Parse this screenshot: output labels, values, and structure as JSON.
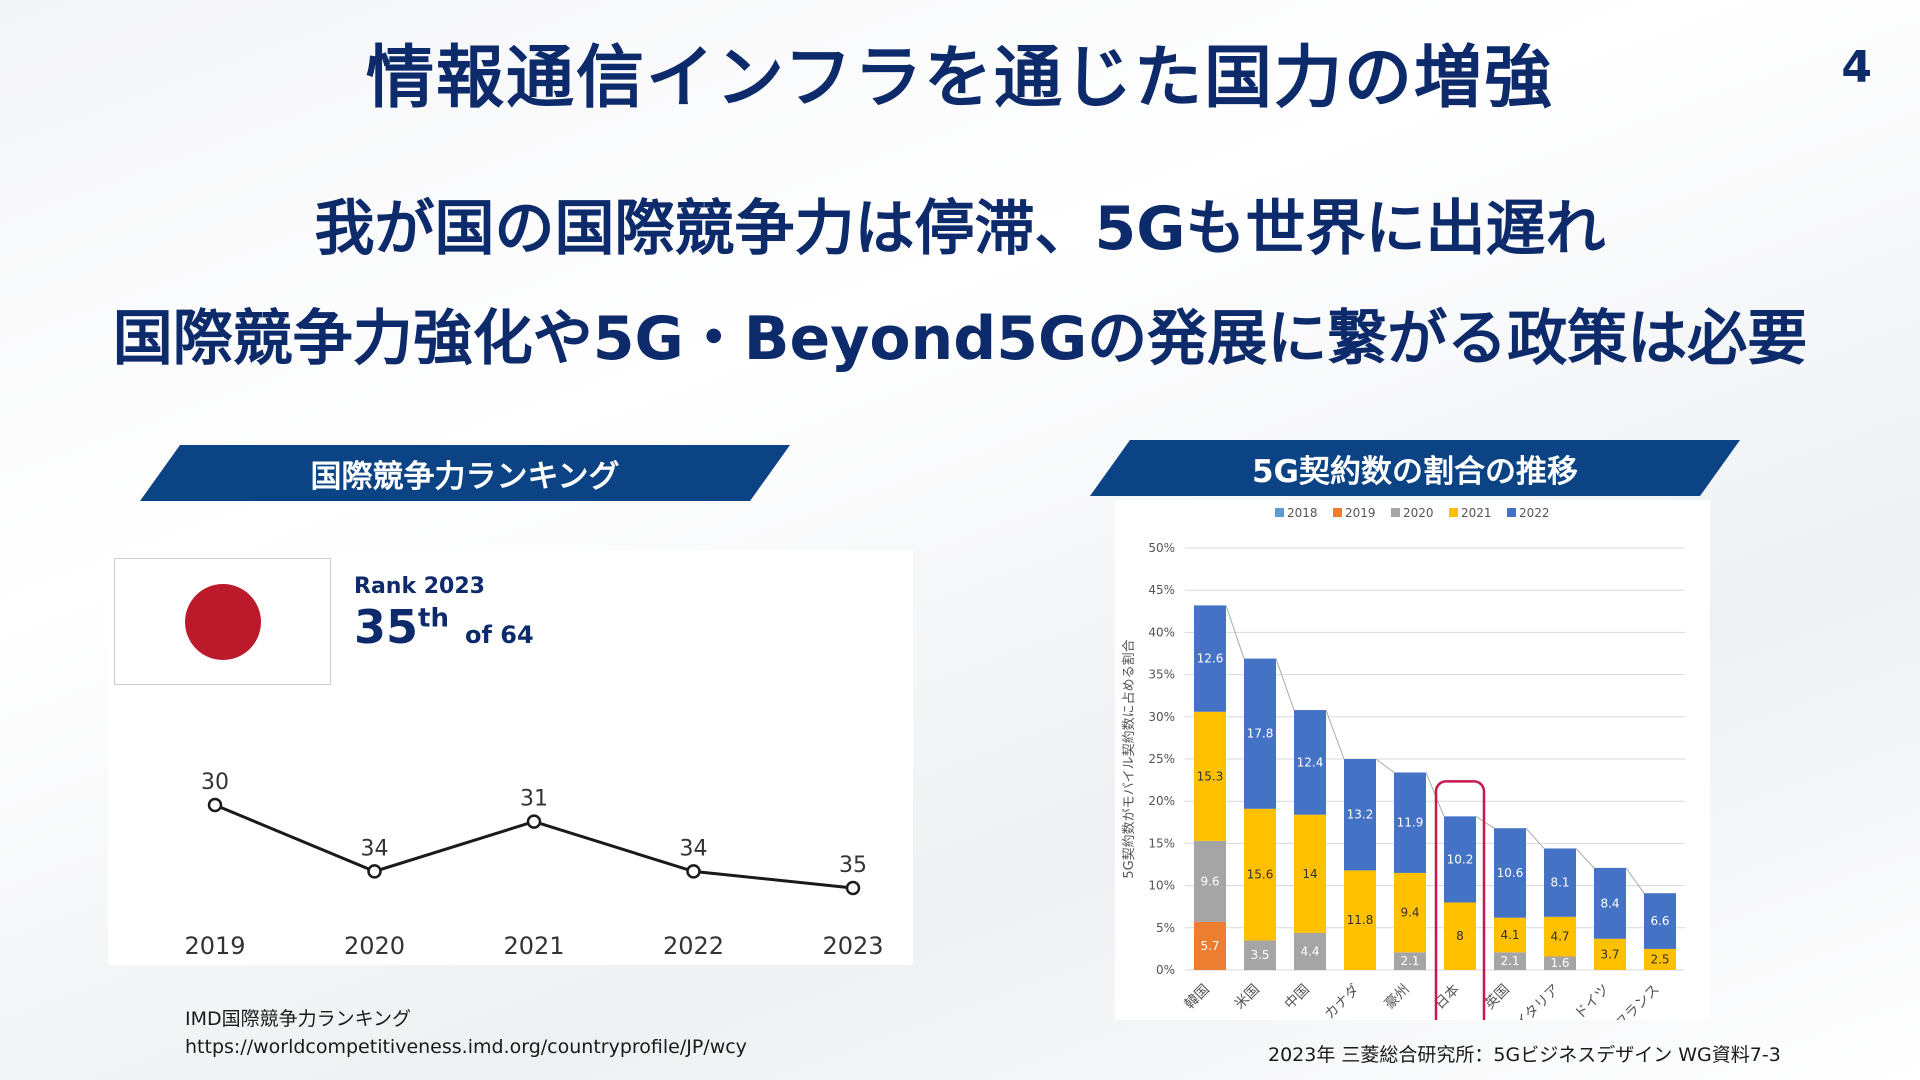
{
  "slide": {
    "title": "情報通信インフラを通じた国力の増強",
    "page_number": "4",
    "headline_1": "我が国の国際競争力は停滞、5Gも世界に出遅れ",
    "headline_2": "国際競争力強化や5G・Beyond5Gの発展に繋がる政策は必要"
  },
  "left_panel": {
    "banner": "国際競争力ランキング",
    "rank_label": "Rank 2023",
    "rank_value": "35",
    "rank_suffix": "th",
    "rank_of": "of 64",
    "source_line1": "IMD国際競争力ランキング",
    "source_line2": "https://worldcompetitiveness.imd.org/countryprofile/JP/wcy"
  },
  "right_panel": {
    "banner": "5G契約数の割合の推移",
    "source": "2023年 三菱総合研究所：5Gビジネスデザイン WG資料7-3"
  },
  "chart_data": [
    {
      "type": "line",
      "x": [
        "2019",
        "2020",
        "2021",
        "2022",
        "2023"
      ],
      "values": [
        30,
        34,
        31,
        34,
        35
      ],
      "data_labels": [
        "30",
        "34",
        "31",
        "34",
        "35"
      ],
      "y_inverted": true,
      "grid": false,
      "line_color": "#1a1a1a"
    },
    {
      "type": "bar",
      "stacked": true,
      "categories": [
        "韓国",
        "米国",
        "中国",
        "カナダ",
        "豪州",
        "日本",
        "英国",
        "イタリア",
        "ドイツ",
        "フランス"
      ],
      "ylabel": "5G契約数がモバイル契約数に占める割合",
      "ylim": [
        0,
        50
      ],
      "yticks": [
        "0%",
        "5%",
        "10%",
        "15%",
        "20%",
        "25%",
        "30%",
        "35%",
        "40%",
        "45%",
        "50%"
      ],
      "legend_position": "top",
      "grid": true,
      "highlight_category": "日本",
      "series": [
        {
          "name": "2018",
          "color": "#5b9bd5",
          "values": [
            0,
            0,
            0,
            0,
            0,
            0,
            0,
            0,
            0,
            0
          ]
        },
        {
          "name": "2019",
          "color": "#ed7d31",
          "values": [
            5.7,
            0,
            0,
            0,
            0,
            0,
            0,
            0,
            0,
            0
          ]
        },
        {
          "name": "2020",
          "color": "#a5a5a5",
          "values": [
            9.6,
            3.5,
            4.4,
            0,
            2.1,
            0,
            2.1,
            1.6,
            0,
            0
          ]
        },
        {
          "name": "2021",
          "color": "#ffc000",
          "values": [
            15.3,
            15.6,
            14.0,
            11.8,
            9.4,
            8.0,
            4.1,
            4.7,
            3.7,
            2.5
          ]
        },
        {
          "name": "2022",
          "color": "#4472c4",
          "values": [
            12.6,
            17.8,
            12.4,
            13.2,
            11.9,
            10.2,
            10.6,
            8.1,
            8.4,
            6.6
          ]
        }
      ]
    }
  ]
}
